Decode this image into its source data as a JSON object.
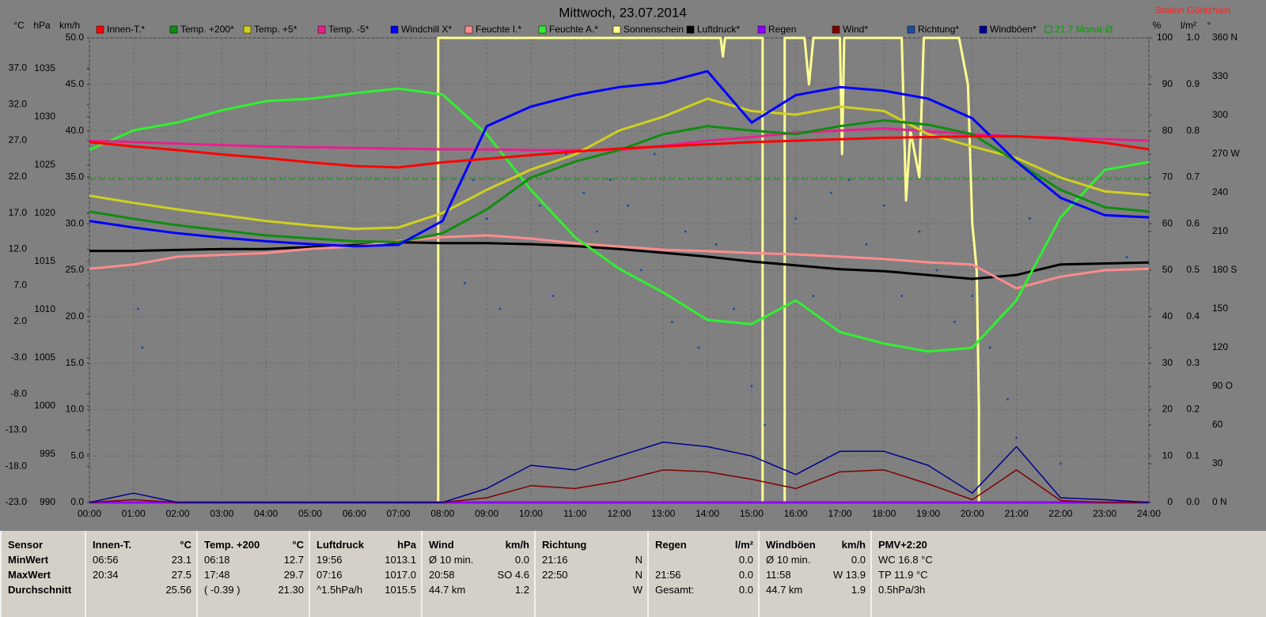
{
  "chart_data": {
    "type": "line",
    "title": "Mittwoch, 23.07.2014",
    "station": "Station Göritzhain",
    "x": [
      0,
      1,
      2,
      3,
      4,
      5,
      6,
      7,
      8,
      9,
      10,
      11,
      12,
      13,
      14,
      15,
      16,
      17,
      18,
      19,
      20,
      21,
      22,
      23,
      24
    ],
    "xlim": [
      0,
      24
    ],
    "xticks": [
      {
        "value": 0,
        "label": "00:00"
      },
      {
        "value": 1,
        "label": "01:00"
      },
      {
        "value": 2,
        "label": "02:00"
      },
      {
        "value": 3,
        "label": "03:00"
      },
      {
        "value": 4,
        "label": "04:00"
      },
      {
        "value": 5,
        "label": "05:00"
      },
      {
        "value": 6,
        "label": "06:00"
      },
      {
        "value": 7,
        "label": "07:00"
      },
      {
        "value": 8,
        "label": "08:00"
      },
      {
        "value": 9,
        "label": "09:00"
      },
      {
        "value": 10,
        "label": "10:00"
      },
      {
        "value": 11,
        "label": "11:00"
      },
      {
        "value": 12,
        "label": "12:00"
      },
      {
        "value": 13,
        "label": "13:00"
      },
      {
        "value": 14,
        "label": "14:00"
      },
      {
        "value": 15,
        "label": "15:00"
      },
      {
        "value": 16,
        "label": "16:00"
      },
      {
        "value": 17,
        "label": "17:00"
      },
      {
        "value": 18,
        "label": "18:00"
      },
      {
        "value": 19,
        "label": "19:00"
      },
      {
        "value": 20,
        "label": "20:00"
      },
      {
        "value": 21,
        "label": "21:00"
      },
      {
        "value": 22,
        "label": "22:00"
      },
      {
        "value": 23,
        "label": "23:00"
      },
      {
        "value": 24,
        "label": "24:00"
      }
    ],
    "ylabel": "°C",
    "ylim": [
      -23,
      41.2
    ],
    "yticks": [
      {
        "value": -23,
        "label": "-23.0"
      },
      {
        "value": -18,
        "label": "-18.0"
      },
      {
        "value": -13,
        "label": "-13.0"
      },
      {
        "value": -8,
        "label": "-8.0"
      },
      {
        "value": -3,
        "label": "-3.0"
      },
      {
        "value": 2,
        "label": "2.0"
      },
      {
        "value": 7,
        "label": "7.0"
      },
      {
        "value": 12,
        "label": "12.0"
      },
      {
        "value": 17,
        "label": "17.0"
      },
      {
        "value": 22,
        "label": "22.0"
      },
      {
        "value": 27,
        "label": "27.0"
      },
      {
        "value": 32,
        "label": "32.0"
      },
      {
        "value": 37,
        "label": "37.0"
      }
    ],
    "y2label": "hPa",
    "y2lim": [
      990,
      1038.2
    ],
    "y2ticks": [
      990,
      995,
      1000,
      1005,
      1010,
      1015,
      1020,
      1025,
      1030,
      1035
    ],
    "y3label": "km/h",
    "y3lim": [
      0,
      50
    ],
    "y3ticks": [
      {
        "value": 0,
        "label": "0.0"
      },
      {
        "value": 5,
        "label": "5.0"
      },
      {
        "value": 10,
        "label": "10.0"
      },
      {
        "value": 15,
        "label": "15.0"
      },
      {
        "value": 20,
        "label": "20.0"
      },
      {
        "value": 25,
        "label": "25.0"
      },
      {
        "value": 30,
        "label": "30.0"
      },
      {
        "value": 35,
        "label": "35.0"
      },
      {
        "value": 40,
        "label": "40.0"
      },
      {
        "value": 45,
        "label": "45.0"
      },
      {
        "value": 50,
        "label": "50.0"
      }
    ],
    "y4label": "%",
    "y4lim": [
      0,
      100
    ],
    "y4ticks": [
      0,
      10,
      20,
      30,
      40,
      50,
      60,
      70,
      80,
      90,
      100
    ],
    "y5label": "l/m²",
    "y5lim": [
      0,
      1
    ],
    "y5ticks": [
      {
        "value": 0,
        "label": "0.0"
      },
      0.1,
      0.2,
      0.3,
      0.4,
      0.5,
      0.6,
      0.7,
      0.8,
      0.9,
      {
        "value": 1,
        "label": "1.0"
      }
    ],
    "y6label": "°",
    "y6lim": [
      0,
      360
    ],
    "y6ticks": [
      {
        "value": 0,
        "label": "0 N"
      },
      30,
      60,
      {
        "value": 90,
        "label": "90 O"
      },
      120,
      150,
      {
        "value": 180,
        "label": "180 S"
      },
      210,
      240,
      {
        "value": 270,
        "label": "270 W"
      },
      300,
      330,
      {
        "value": 360,
        "label": "360 N"
      }
    ],
    "grid": true,
    "monthly_avg": {
      "label": "21.7 Monat-Ø",
      "value": 21.7,
      "color": "#00a000"
    },
    "series": [
      {
        "name": "Innen-T.*",
        "color": "#ff0000",
        "axis": "y",
        "values": [
          26.8,
          26.2,
          25.7,
          25.1,
          24.6,
          24.0,
          23.5,
          23.3,
          24.0,
          24.5,
          25.0,
          25.5,
          25.9,
          26.2,
          26.5,
          26.8,
          27.0,
          27.2,
          27.4,
          27.5,
          27.6,
          27.6,
          27.3,
          26.7,
          25.8
        ]
      },
      {
        "name": "Temp. +200*",
        "color": "#108c10",
        "axis": "y",
        "values": [
          17.2,
          16.2,
          15.3,
          14.6,
          13.9,
          13.5,
          13.1,
          13.0,
          14.2,
          17.5,
          21.9,
          24.1,
          25.7,
          27.9,
          29.0,
          28.4,
          27.9,
          29.0,
          29.8,
          29.2,
          27.9,
          24.1,
          20.2,
          17.8,
          17.2
        ]
      },
      {
        "name": "Temp. +5*",
        "color": "#d0d020",
        "axis": "y",
        "values": [
          19.4,
          18.4,
          17.5,
          16.7,
          15.9,
          15.3,
          14.8,
          15.0,
          17.0,
          20.2,
          23.0,
          25.1,
          28.4,
          30.3,
          32.8,
          31.1,
          30.6,
          31.7,
          31.1,
          27.9,
          26.2,
          24.6,
          21.9,
          20.0,
          19.5
        ]
      },
      {
        "name": "Temp. -5*",
        "color": "#e8208c",
        "axis": "y",
        "values": [
          27.0,
          26.8,
          26.6,
          26.4,
          26.2,
          26.1,
          26.0,
          25.9,
          25.8,
          25.8,
          25.7,
          25.7,
          25.7,
          26.3,
          27.0,
          27.5,
          28.1,
          28.4,
          28.7,
          28.3,
          27.9,
          27.6,
          27.4,
          27.2,
          27.0
        ]
      },
      {
        "name": "Windchill X*",
        "color": "#0000ff",
        "axis": "y",
        "values": [
          15.9,
          15.0,
          14.2,
          13.6,
          13.1,
          12.7,
          12.4,
          12.6,
          15.9,
          29.0,
          31.7,
          33.3,
          34.4,
          35.0,
          36.6,
          29.5,
          33.3,
          34.4,
          33.9,
          32.8,
          30.1,
          24.1,
          19.1,
          16.7,
          16.4
        ]
      },
      {
        "name": "Feuchte I.*",
        "color": "#ff8c8c",
        "axis": "y4",
        "values": [
          50.3,
          51.2,
          52.9,
          53.3,
          53.7,
          54.6,
          55.1,
          56.3,
          57.1,
          57.5,
          56.8,
          55.8,
          55.1,
          54.4,
          54.1,
          53.7,
          53.4,
          52.9,
          52.4,
          51.7,
          51.2,
          46.1,
          48.6,
          50.0,
          50.3
        ]
      },
      {
        "name": "Feuchte A.*",
        "color": "#30f030",
        "axis": "y4",
        "values": [
          75.9,
          80.1,
          81.8,
          84.4,
          86.4,
          86.9,
          88.1,
          89.1,
          87.8,
          79.3,
          67.3,
          57.1,
          50.3,
          45.2,
          39.3,
          38.4,
          43.5,
          36.7,
          34.2,
          32.5,
          33.3,
          43.5,
          61.4,
          71.6,
          73.3
        ]
      },
      {
        "name": "Sonnenschein",
        "color": "#ffff90",
        "axis": "y4",
        "x": [
          0,
          7.9,
          7.9,
          14.3,
          14.35,
          14.4,
          15.25,
          15.25,
          15.75,
          15.75,
          16.2,
          16.3,
          16.4,
          17.0,
          17.05,
          17.1,
          18.4,
          18.5,
          18.6,
          18.8,
          18.9,
          19.7,
          19.9,
          20.0,
          20.1,
          20.15,
          20.15,
          24
        ],
        "values": [
          0,
          0,
          100,
          100,
          96,
          100,
          100,
          0,
          0,
          100,
          100,
          90,
          100,
          100,
          75,
          100,
          100,
          65,
          80,
          70,
          100,
          100,
          90,
          60,
          50,
          20,
          0,
          0
        ]
      },
      {
        "name": "Luftdruck*",
        "color": "#000000",
        "axis": "y2",
        "values": [
          1016.1,
          1016.1,
          1016.2,
          1016.3,
          1016.3,
          1016.5,
          1016.7,
          1017.0,
          1016.9,
          1016.9,
          1016.8,
          1016.6,
          1016.3,
          1015.9,
          1015.5,
          1015.0,
          1014.6,
          1014.2,
          1014.0,
          1013.6,
          1013.2,
          1013.6,
          1014.7,
          1014.8,
          1014.9
        ]
      },
      {
        "name": "Regen",
        "color": "#9000ff",
        "axis": "y5",
        "values": [
          0,
          0,
          0,
          0,
          0,
          0,
          0,
          0,
          0,
          0,
          0,
          0,
          0,
          0,
          0,
          0,
          0,
          0,
          0,
          0,
          0,
          0,
          0,
          0,
          0
        ]
      },
      {
        "name": "Wind*",
        "color": "#800000",
        "axis": "y3",
        "values": [
          0,
          0.3,
          0,
          0,
          0,
          0,
          0,
          0,
          0,
          0.5,
          1.8,
          1.5,
          2.3,
          3.5,
          3.3,
          2.5,
          1.5,
          3.3,
          3.5,
          2.0,
          0.3,
          3.5,
          0.2,
          0,
          0
        ]
      },
      {
        "name": "Richtung*",
        "color": "#1f4e9a",
        "axis": "y6",
        "mark": "dots",
        "x": [
          1.0,
          1.1,
          1.2,
          8.5,
          8.7,
          9.0,
          9.3,
          9.6,
          9.9,
          10.2,
          10.5,
          10.8,
          11.2,
          11.5,
          11.8,
          12.2,
          12.5,
          12.8,
          13.2,
          13.5,
          13.8,
          14.2,
          14.6,
          15.0,
          15.3,
          16.0,
          16.4,
          16.8,
          17.2,
          17.6,
          18.0,
          18.4,
          18.8,
          19.2,
          19.6,
          20.0,
          20.4,
          20.8,
          21.0,
          21.3,
          22.0,
          23.5
        ],
        "values": [
          195,
          150,
          120,
          170,
          250,
          220,
          150,
          260,
          200,
          230,
          160,
          270,
          240,
          210,
          250,
          230,
          180,
          270,
          140,
          210,
          120,
          200,
          150,
          90,
          60,
          220,
          160,
          240,
          250,
          200,
          230,
          160,
          210,
          180,
          140,
          160,
          120,
          80,
          50,
          220,
          30,
          190
        ]
      },
      {
        "name": "Windböen*",
        "color": "#000090",
        "axis": "y3",
        "values": [
          0,
          1.0,
          0,
          0,
          0,
          0,
          0,
          0,
          0,
          1.5,
          4.0,
          3.5,
          5.0,
          6.5,
          6.0,
          5.0,
          3.0,
          5.5,
          5.5,
          4.0,
          1.0,
          6.0,
          0.5,
          0.3,
          0
        ]
      }
    ]
  },
  "table": {
    "panels": [
      {
        "title": "Sensor",
        "rows": [
          [
            "MinWert"
          ],
          [
            "MaxWert"
          ],
          [
            "Durchschnitt"
          ]
        ]
      },
      {
        "title": "Innen-T.",
        "unit": "°C",
        "rows": [
          [
            "06:56",
            "23.1"
          ],
          [
            "20:34",
            "27.5"
          ],
          [
            null,
            "25.56"
          ]
        ]
      },
      {
        "title": "Temp. +200",
        "unit": "°C",
        "rows": [
          [
            "06:18",
            "12.7"
          ],
          [
            "17:48",
            "29.7"
          ],
          [
            "( -0.39 )",
            "21.30"
          ]
        ]
      },
      {
        "title": "Luftdruck",
        "unit": "hPa",
        "rows": [
          [
            "19:56",
            "1013.1"
          ],
          [
            "07:16",
            "1017.0"
          ],
          [
            "^1.5hPa/h",
            "1015.5"
          ]
        ]
      },
      {
        "title": "Wind",
        "unit": "km/h",
        "rows": [
          [
            "Ø 10 min.",
            "0.0"
          ],
          [
            "20:58",
            "SO 4.6"
          ],
          [
            "44.7 km",
            "1.2"
          ]
        ]
      },
      {
        "title": "Richtung",
        "rows": [
          [
            "21:16",
            "N"
          ],
          [
            "22:50",
            "N"
          ],
          [
            null,
            "W"
          ]
        ]
      },
      {
        "title": "Regen",
        "unit": "l/m²",
        "rows": [
          [
            null,
            "0.0"
          ],
          [
            "21:56",
            "0.0"
          ],
          [
            "Gesamt:",
            "0.0"
          ]
        ]
      },
      {
        "title": "Windböen",
        "unit": "km/h",
        "rows": [
          [
            "Ø 10 min.",
            "0.0"
          ],
          [
            "11:58",
            "W 13.9"
          ],
          [
            "44.7 km",
            "1.9"
          ]
        ]
      },
      {
        "title": "PMV+2:20",
        "rows": [
          [
            "WC 16.8 °C"
          ],
          [
            "TP 11.9 °C"
          ],
          [
            "0.5hPa/3h"
          ]
        ]
      }
    ]
  }
}
